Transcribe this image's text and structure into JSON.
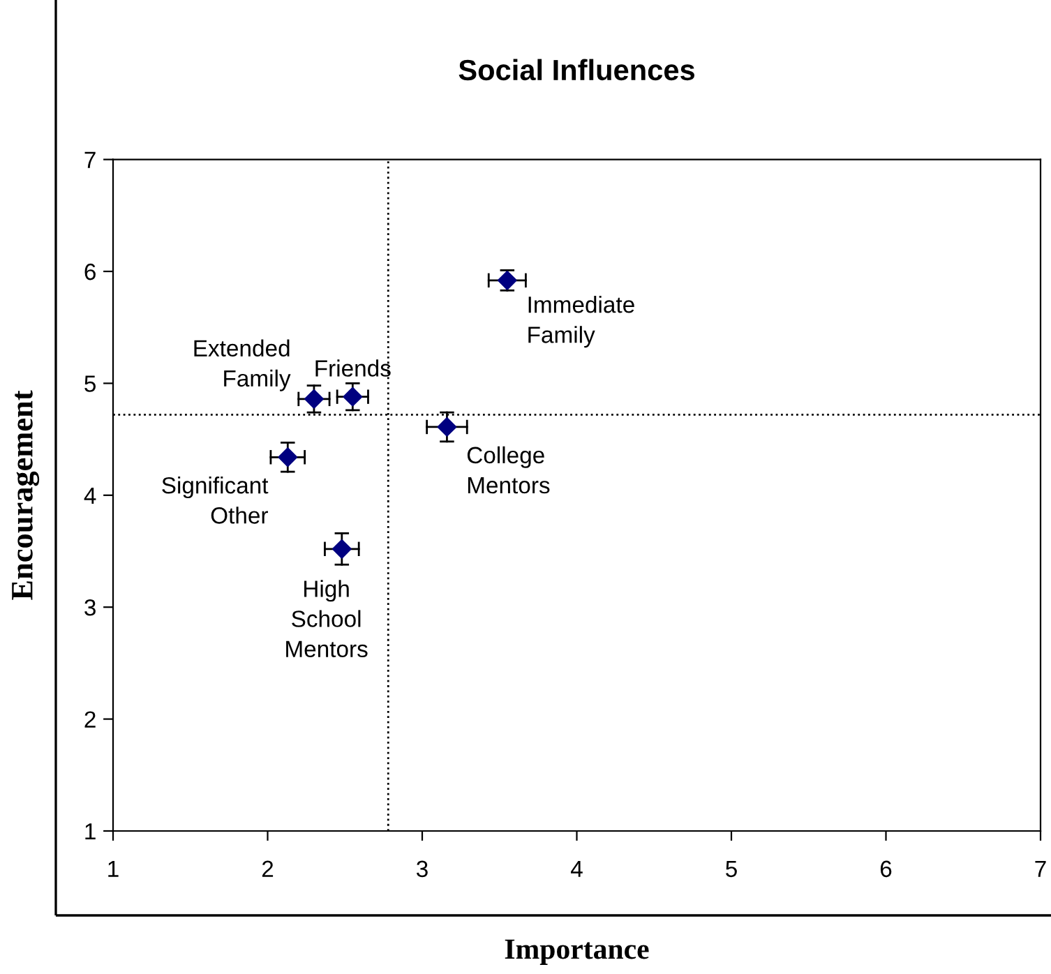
{
  "chart_data": {
    "type": "scatter",
    "title": "Social Influences",
    "xlabel": "Importance",
    "ylabel": "Encouragement",
    "x": [
      3.55,
      2.3,
      2.55,
      3.16,
      2.13,
      2.48
    ],
    "series": [
      {
        "color": "#000080",
        "values": [
          5.92,
          4.86,
          4.88,
          4.61,
          4.34,
          3.52
        ],
        "errors": [
          0.09,
          0.12,
          0.12,
          0.13,
          0.13,
          0.14
        ],
        "xerrors": [
          0.12,
          0.1,
          0.1,
          0.13,
          0.11,
          0.11
        ]
      }
    ],
    "annotations": [
      {
        "text": "Immediate\nFamily",
        "x": 3.55,
        "y": 5.92
      },
      {
        "text": "Extended\nFamily",
        "x": 2.3,
        "y": 4.86
      },
      {
        "text": "Friends",
        "x": 2.55,
        "y": 4.88
      },
      {
        "text": "College\nMentors",
        "x": 3.16,
        "y": 4.61
      },
      {
        "text": "Significant\nOther",
        "x": 2.13,
        "y": 4.34
      },
      {
        "text": "High\nSchool\nMentors",
        "x": 2.48,
        "y": 3.52
      }
    ],
    "ref_lines": [
      {
        "axis": "x",
        "value": 2.78,
        "line_style": "dotted",
        "color": "#000000"
      },
      {
        "axis": "y",
        "value": 4.72,
        "line_style": "dotted",
        "color": "#000000"
      }
    ],
    "xlim": [
      1,
      7
    ],
    "ylim": [
      1,
      7
    ],
    "xticks": [
      1,
      2,
      3,
      4,
      5,
      6,
      7
    ],
    "yticks": [
      1,
      2,
      3,
      4,
      5,
      6,
      7
    ],
    "marker": "diamond",
    "grid": false
  }
}
